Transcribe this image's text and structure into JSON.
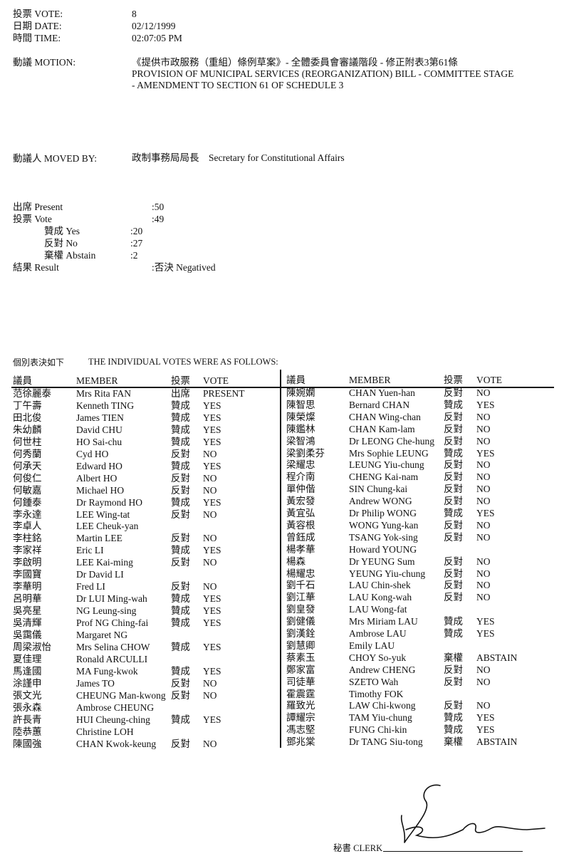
{
  "header": {
    "vote_label": "投票 VOTE:",
    "vote_value": "8",
    "date_label": "日期 DATE:",
    "date_value": "02/12/1999",
    "time_label": "時間 TIME:",
    "time_value": "02:07:05 PM",
    "motion_label": "動議 MOTION:",
    "motion_lines": [
      "《提供市政服務（重組）條例草案》- 全體委員會審議階段 - 修正附表3第61條",
      "PROVISION OF MUNICIPAL SERVICES (REORGANIZATION) BILL - COMMITTEE STAGE",
      "- AMENDMENT TO SECTION 61 OF SCHEDULE 3"
    ],
    "moved_by_label": "動議人 MOVED BY:",
    "moved_by_value": "政制事務局局長　Secretary for Constitutional Affairs"
  },
  "summary": {
    "present_label": "出席 Present",
    "present_value": ":50",
    "vote_label": "投票 Vote",
    "vote_value": ":49",
    "yes_label": "贊成 Yes",
    "yes_value": ":20",
    "no_label": "反對 No",
    "no_value": ":27",
    "abstain_label": "棄權 Abstain",
    "abstain_value": ":2",
    "result_label": "結果 Result",
    "result_value": ":否決 Negatived"
  },
  "votes": {
    "title_zh": "個別表決如下",
    "title_en": "THE INDIVIDUAL VOTES WERE AS FOLLOWS:",
    "columns": [
      "議員",
      "MEMBER",
      "投票",
      "VOTE"
    ],
    "left": [
      [
        "范徐麗泰",
        "Mrs Rita FAN",
        "出席",
        "PRESENT"
      ],
      [
        "丁午壽",
        "Kenneth TING",
        "贊成",
        "YES"
      ],
      [
        "田北俊",
        "James TIEN",
        "贊成",
        "YES"
      ],
      [
        "朱幼麟",
        "David CHU",
        "贊成",
        "YES"
      ],
      [
        "何世柱",
        "HO Sai-chu",
        "贊成",
        "YES"
      ],
      [
        "何秀蘭",
        "Cyd HO",
        "反對",
        "NO"
      ],
      [
        "何承天",
        "Edward HO",
        "贊成",
        "YES"
      ],
      [
        "何俊仁",
        "Albert HO",
        "反對",
        "NO"
      ],
      [
        "何敏嘉",
        "Michael HO",
        "反對",
        "NO"
      ],
      [
        "何鍾泰",
        "Dr Raymond HO",
        "贊成",
        "YES"
      ],
      [
        "李永達",
        "LEE Wing-tat",
        "反對",
        "NO"
      ],
      [
        "李卓人",
        "LEE Cheuk-yan",
        "",
        ""
      ],
      [
        "李柱銘",
        "Martin LEE",
        "反對",
        "NO"
      ],
      [
        "李家祥",
        "Eric LI",
        "贊成",
        "YES"
      ],
      [
        "李啟明",
        "LEE Kai-ming",
        "反對",
        "NO"
      ],
      [
        "李國寶",
        "Dr David LI",
        "",
        ""
      ],
      [
        "李華明",
        "Fred LI",
        "反對",
        "NO"
      ],
      [
        "呂明華",
        "Dr LUI Ming-wah",
        "贊成",
        "YES"
      ],
      [
        "吳亮星",
        "NG Leung-sing",
        "贊成",
        "YES"
      ],
      [
        "吳清輝",
        "Prof NG Ching-fai",
        "贊成",
        "YES"
      ],
      [
        "吳靄儀",
        "Margaret NG",
        "",
        ""
      ],
      [
        "周梁淑怡",
        "Mrs Selina CHOW",
        "贊成",
        "YES"
      ],
      [
        "夏佳理",
        "Ronald ARCULLI",
        "",
        ""
      ],
      [
        "馬逢國",
        "MA Fung-kwok",
        "贊成",
        "YES"
      ],
      [
        "涂謹申",
        "James TO",
        "反對",
        "NO"
      ],
      [
        "張文光",
        "CHEUNG Man-kwong",
        "反對",
        "NO"
      ],
      [
        "張永森",
        "Ambrose CHEUNG",
        "",
        ""
      ],
      [
        "許長青",
        "HUI Cheung-ching",
        "贊成",
        "YES"
      ],
      [
        "陸恭蕙",
        "Christine LOH",
        "",
        ""
      ],
      [
        "陳國強",
        "CHAN Kwok-keung",
        "反對",
        "NO"
      ]
    ],
    "right": [
      [
        "陳婉嫻",
        "CHAN Yuen-han",
        "反對",
        "NO"
      ],
      [
        "陳智思",
        "Bernard CHAN",
        "贊成",
        "YES"
      ],
      [
        "陳榮燦",
        "CHAN Wing-chan",
        "反對",
        "NO"
      ],
      [
        "陳鑑林",
        "CHAN Kam-lam",
        "反對",
        "NO"
      ],
      [
        "梁智鴻",
        "Dr LEONG Che-hung",
        "反對",
        "NO"
      ],
      [
        "梁劉柔芬",
        "Mrs Sophie LEUNG",
        "贊成",
        "YES"
      ],
      [
        "梁耀忠",
        "LEUNG Yiu-chung",
        "反對",
        "NO"
      ],
      [
        "程介南",
        "CHENG Kai-nam",
        "反對",
        "NO"
      ],
      [
        "單仲偕",
        "SIN Chung-kai",
        "反對",
        "NO"
      ],
      [
        "黃宏發",
        "Andrew WONG",
        "反對",
        "NO"
      ],
      [
        "黃宜弘",
        "Dr Philip WONG",
        "贊成",
        "YES"
      ],
      [
        "黃容根",
        "WONG Yung-kan",
        "反對",
        "NO"
      ],
      [
        "曾鈺成",
        "TSANG Yok-sing",
        "反對",
        "NO"
      ],
      [
        "楊孝華",
        "Howard YOUNG",
        "",
        ""
      ],
      [
        "楊森",
        "Dr YEUNG Sum",
        "反對",
        "NO"
      ],
      [
        "楊耀忠",
        "YEUNG Yiu-chung",
        "反對",
        "NO"
      ],
      [
        "劉千石",
        "LAU Chin-shek",
        "反對",
        "NO"
      ],
      [
        "劉江華",
        "LAU Kong-wah",
        "反對",
        "NO"
      ],
      [
        "劉皇發",
        "LAU Wong-fat",
        "",
        ""
      ],
      [
        "劉健儀",
        "Mrs Miriam LAU",
        "贊成",
        "YES"
      ],
      [
        "劉漢銓",
        "Ambrose LAU",
        "贊成",
        "YES"
      ],
      [
        "劉慧卿",
        "Emily LAU",
        "",
        ""
      ],
      [
        "蔡素玉",
        "CHOY So-yuk",
        "棄權",
        "ABSTAIN"
      ],
      [
        "鄭家富",
        "Andrew CHENG",
        "反對",
        "NO"
      ],
      [
        "司徒華",
        "SZETO Wah",
        "反對",
        "NO"
      ],
      [
        "霍震霆",
        "Timothy FOK",
        "",
        ""
      ],
      [
        "羅致光",
        "LAW Chi-kwong",
        "反對",
        "NO"
      ],
      [
        "譚耀宗",
        "TAM Yiu-chung",
        "贊成",
        "YES"
      ],
      [
        "馮志堅",
        "FUNG Chi-kin",
        "贊成",
        "YES"
      ],
      [
        "鄧兆棠",
        "Dr TANG Siu-tong",
        "棄權",
        "ABSTAIN"
      ]
    ]
  },
  "footer": {
    "clerk_label": "秘書 CLERK"
  }
}
